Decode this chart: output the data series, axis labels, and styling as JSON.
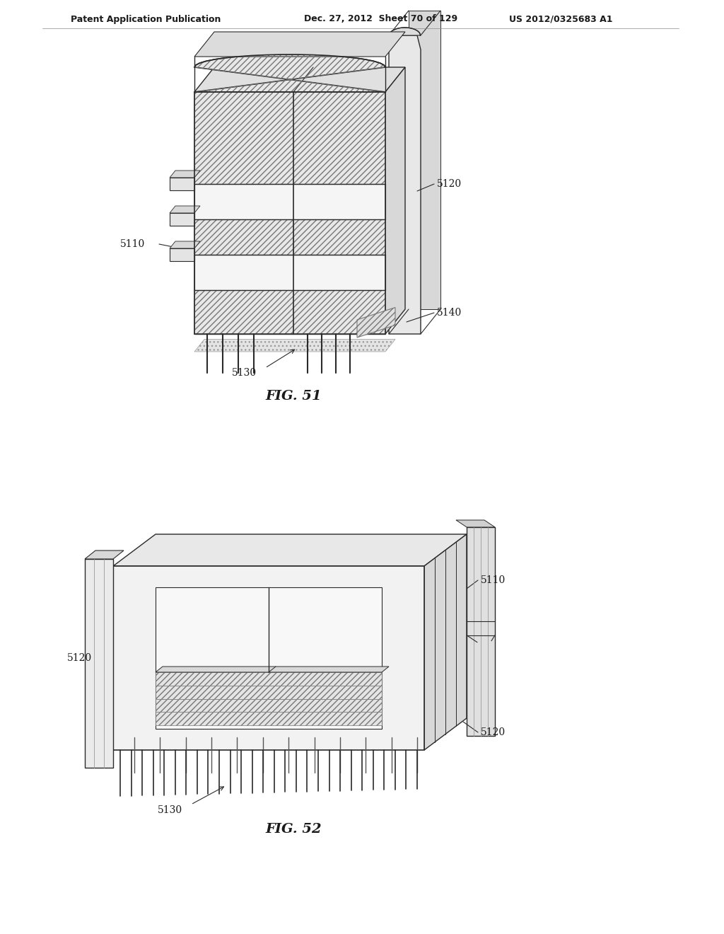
{
  "page_header_left": "Patent Application Publication",
  "page_header_mid": "Dec. 27, 2012  Sheet 70 of 129",
  "page_header_right": "US 2012/0325683 A1",
  "bg_color": "#e8e8e8",
  "fig51_title": "FIG. 51",
  "fig52_title": "FIG. 52",
  "line_color": "#2a2a2a",
  "hatch_color": "#555555",
  "face_color_front": "#e8e8e8",
  "face_color_side": "#d8d8d8",
  "face_color_top": "#ececec",
  "face_color_white": "#f8f8f8"
}
